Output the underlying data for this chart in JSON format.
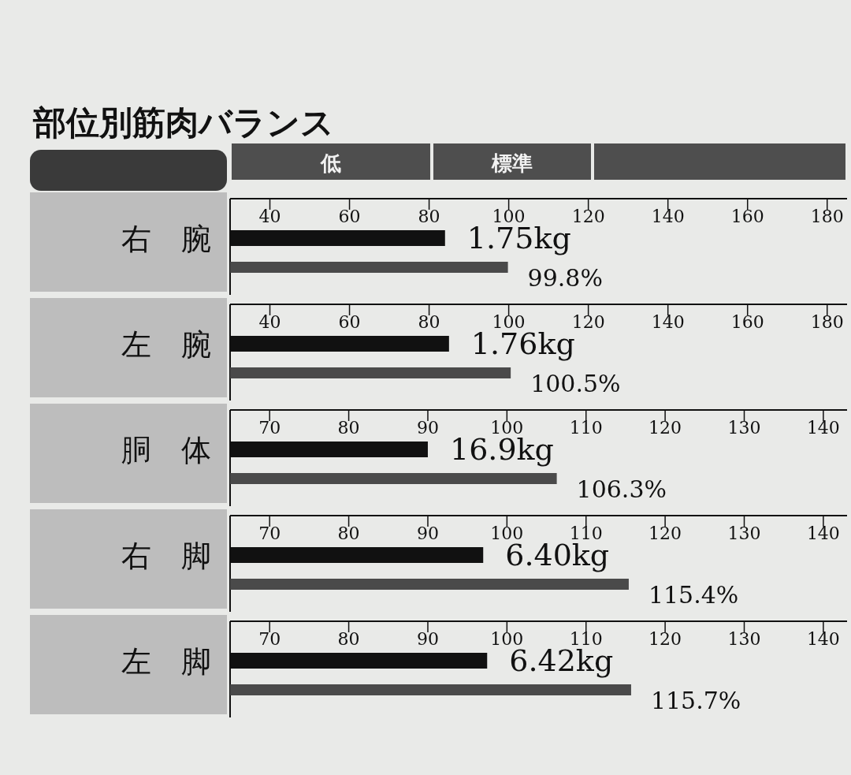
{
  "chart_data": [
    {
      "type": "bar",
      "orientation": "horizontal",
      "title": "部位別筋肉バランス",
      "categories": [
        "右　腕",
        null
      ],
      "xlim": [
        30,
        185
      ],
      "xticks": [
        40,
        60,
        80,
        100,
        120,
        140,
        160,
        180
      ],
      "annotations": [
        "低",
        "標準",
        "1.75kg"
      ],
      "series": [
        {
          "colors": [
            "#111111",
            "#4a4a4a"
          ],
          "values": [
            84,
            99.8
          ],
          "value_labels": [
            null,
            "99.8%"
          ]
        }
      ]
    },
    {
      "type": "bar",
      "orientation": "horizontal",
      "categories": [
        "左　腕",
        null
      ],
      "xlim": [
        30,
        185
      ],
      "xticks": [
        40,
        60,
        80,
        100,
        120,
        140,
        160,
        180
      ],
      "annotations": [
        "1.76kg"
      ],
      "series": [
        {
          "colors": [
            "#111111",
            "#4a4a4a"
          ],
          "values": [
            85,
            100.5
          ],
          "value_labels": [
            null,
            "100.5%"
          ]
        }
      ]
    },
    {
      "type": "bar",
      "orientation": "horizontal",
      "categories": [
        "胴　体",
        null
      ],
      "xlim": [
        65,
        143
      ],
      "xticks": [
        70,
        80,
        90,
        100,
        110,
        120,
        130,
        140
      ],
      "annotations": [
        "16.9kg"
      ],
      "series": [
        {
          "colors": [
            "#111111",
            "#4a4a4a"
          ],
          "values": [
            90,
            106.3
          ],
          "value_labels": [
            null,
            "106.3%"
          ]
        }
      ]
    },
    {
      "type": "bar",
      "orientation": "horizontal",
      "categories": [
        "右　脚",
        null
      ],
      "xlim": [
        65,
        143
      ],
      "xticks": [
        70,
        80,
        90,
        100,
        110,
        120,
        130,
        140
      ],
      "annotations": [
        "6.40kg"
      ],
      "series": [
        {
          "colors": [
            "#111111",
            "#4a4a4a"
          ],
          "values": [
            97,
            115.4
          ],
          "value_labels": [
            null,
            "115.4%"
          ]
        }
      ]
    },
    {
      "type": "bar",
      "orientation": "horizontal",
      "categories": [
        "左　脚",
        null
      ],
      "xlim": [
        65,
        143
      ],
      "xticks": [
        70,
        80,
        90,
        100,
        110,
        120,
        130,
        140
      ],
      "annotations": [
        "6.42kg"
      ],
      "series": [
        {
          "colors": [
            "#111111",
            "#4a4a4a"
          ],
          "values": [
            97.5,
            115.7
          ],
          "value_labels": [
            null,
            "115.7%"
          ]
        }
      ]
    }
  ]
}
